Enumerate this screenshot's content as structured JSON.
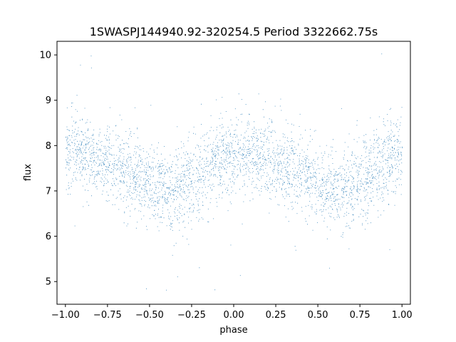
{
  "chart_data": {
    "type": "scatter",
    "title": "1SWASPJ144940.92-320254.5 Period 3322662.75s",
    "xlabel": "phase",
    "ylabel": "flux",
    "xlim": [
      -1.05,
      1.05
    ],
    "ylim": [
      4.5,
      10.3
    ],
    "xticks": [
      -1.0,
      -0.75,
      -0.5,
      -0.25,
      0.0,
      0.25,
      0.5,
      0.75,
      1.0
    ],
    "xtick_labels": [
      "−1.00",
      "−0.75",
      "−0.50",
      "−0.25",
      "0.00",
      "0.25",
      "0.50",
      "0.75",
      "1.00"
    ],
    "yticks": [
      5,
      6,
      7,
      8,
      9,
      10
    ],
    "ytick_labels": [
      "5",
      "6",
      "7",
      "8",
      "9",
      "10"
    ],
    "grid": false,
    "color": "#1f77b4",
    "series": [
      {
        "phase_range": [
          -1.0,
          1.0
        ],
        "trend_points": [
          {
            "phase": -1.0,
            "flux": 7.9
          },
          {
            "phase": -0.9,
            "flux": 7.8
          },
          {
            "phase": -0.75,
            "flux": 7.65
          },
          {
            "phase": -0.6,
            "flux": 7.35
          },
          {
            "phase": -0.5,
            "flux": 7.15
          },
          {
            "phase": -0.35,
            "flux": 6.95
          },
          {
            "phase": -0.25,
            "flux": 7.2
          },
          {
            "phase": -0.1,
            "flux": 7.65
          },
          {
            "phase": 0.0,
            "flux": 7.9
          },
          {
            "phase": 0.1,
            "flux": 7.8
          },
          {
            "phase": 0.25,
            "flux": 7.65
          },
          {
            "phase": 0.4,
            "flux": 7.35
          },
          {
            "phase": 0.5,
            "flux": 7.15
          },
          {
            "phase": 0.65,
            "flux": 6.95
          },
          {
            "phase": 0.75,
            "flux": 7.2
          },
          {
            "phase": 0.9,
            "flux": 7.65
          },
          {
            "phase": 1.0,
            "flux": 7.9
          }
        ],
        "scatter_spread": 0.45,
        "outlier_range": [
          4.75,
          10.05
        ]
      }
    ]
  }
}
